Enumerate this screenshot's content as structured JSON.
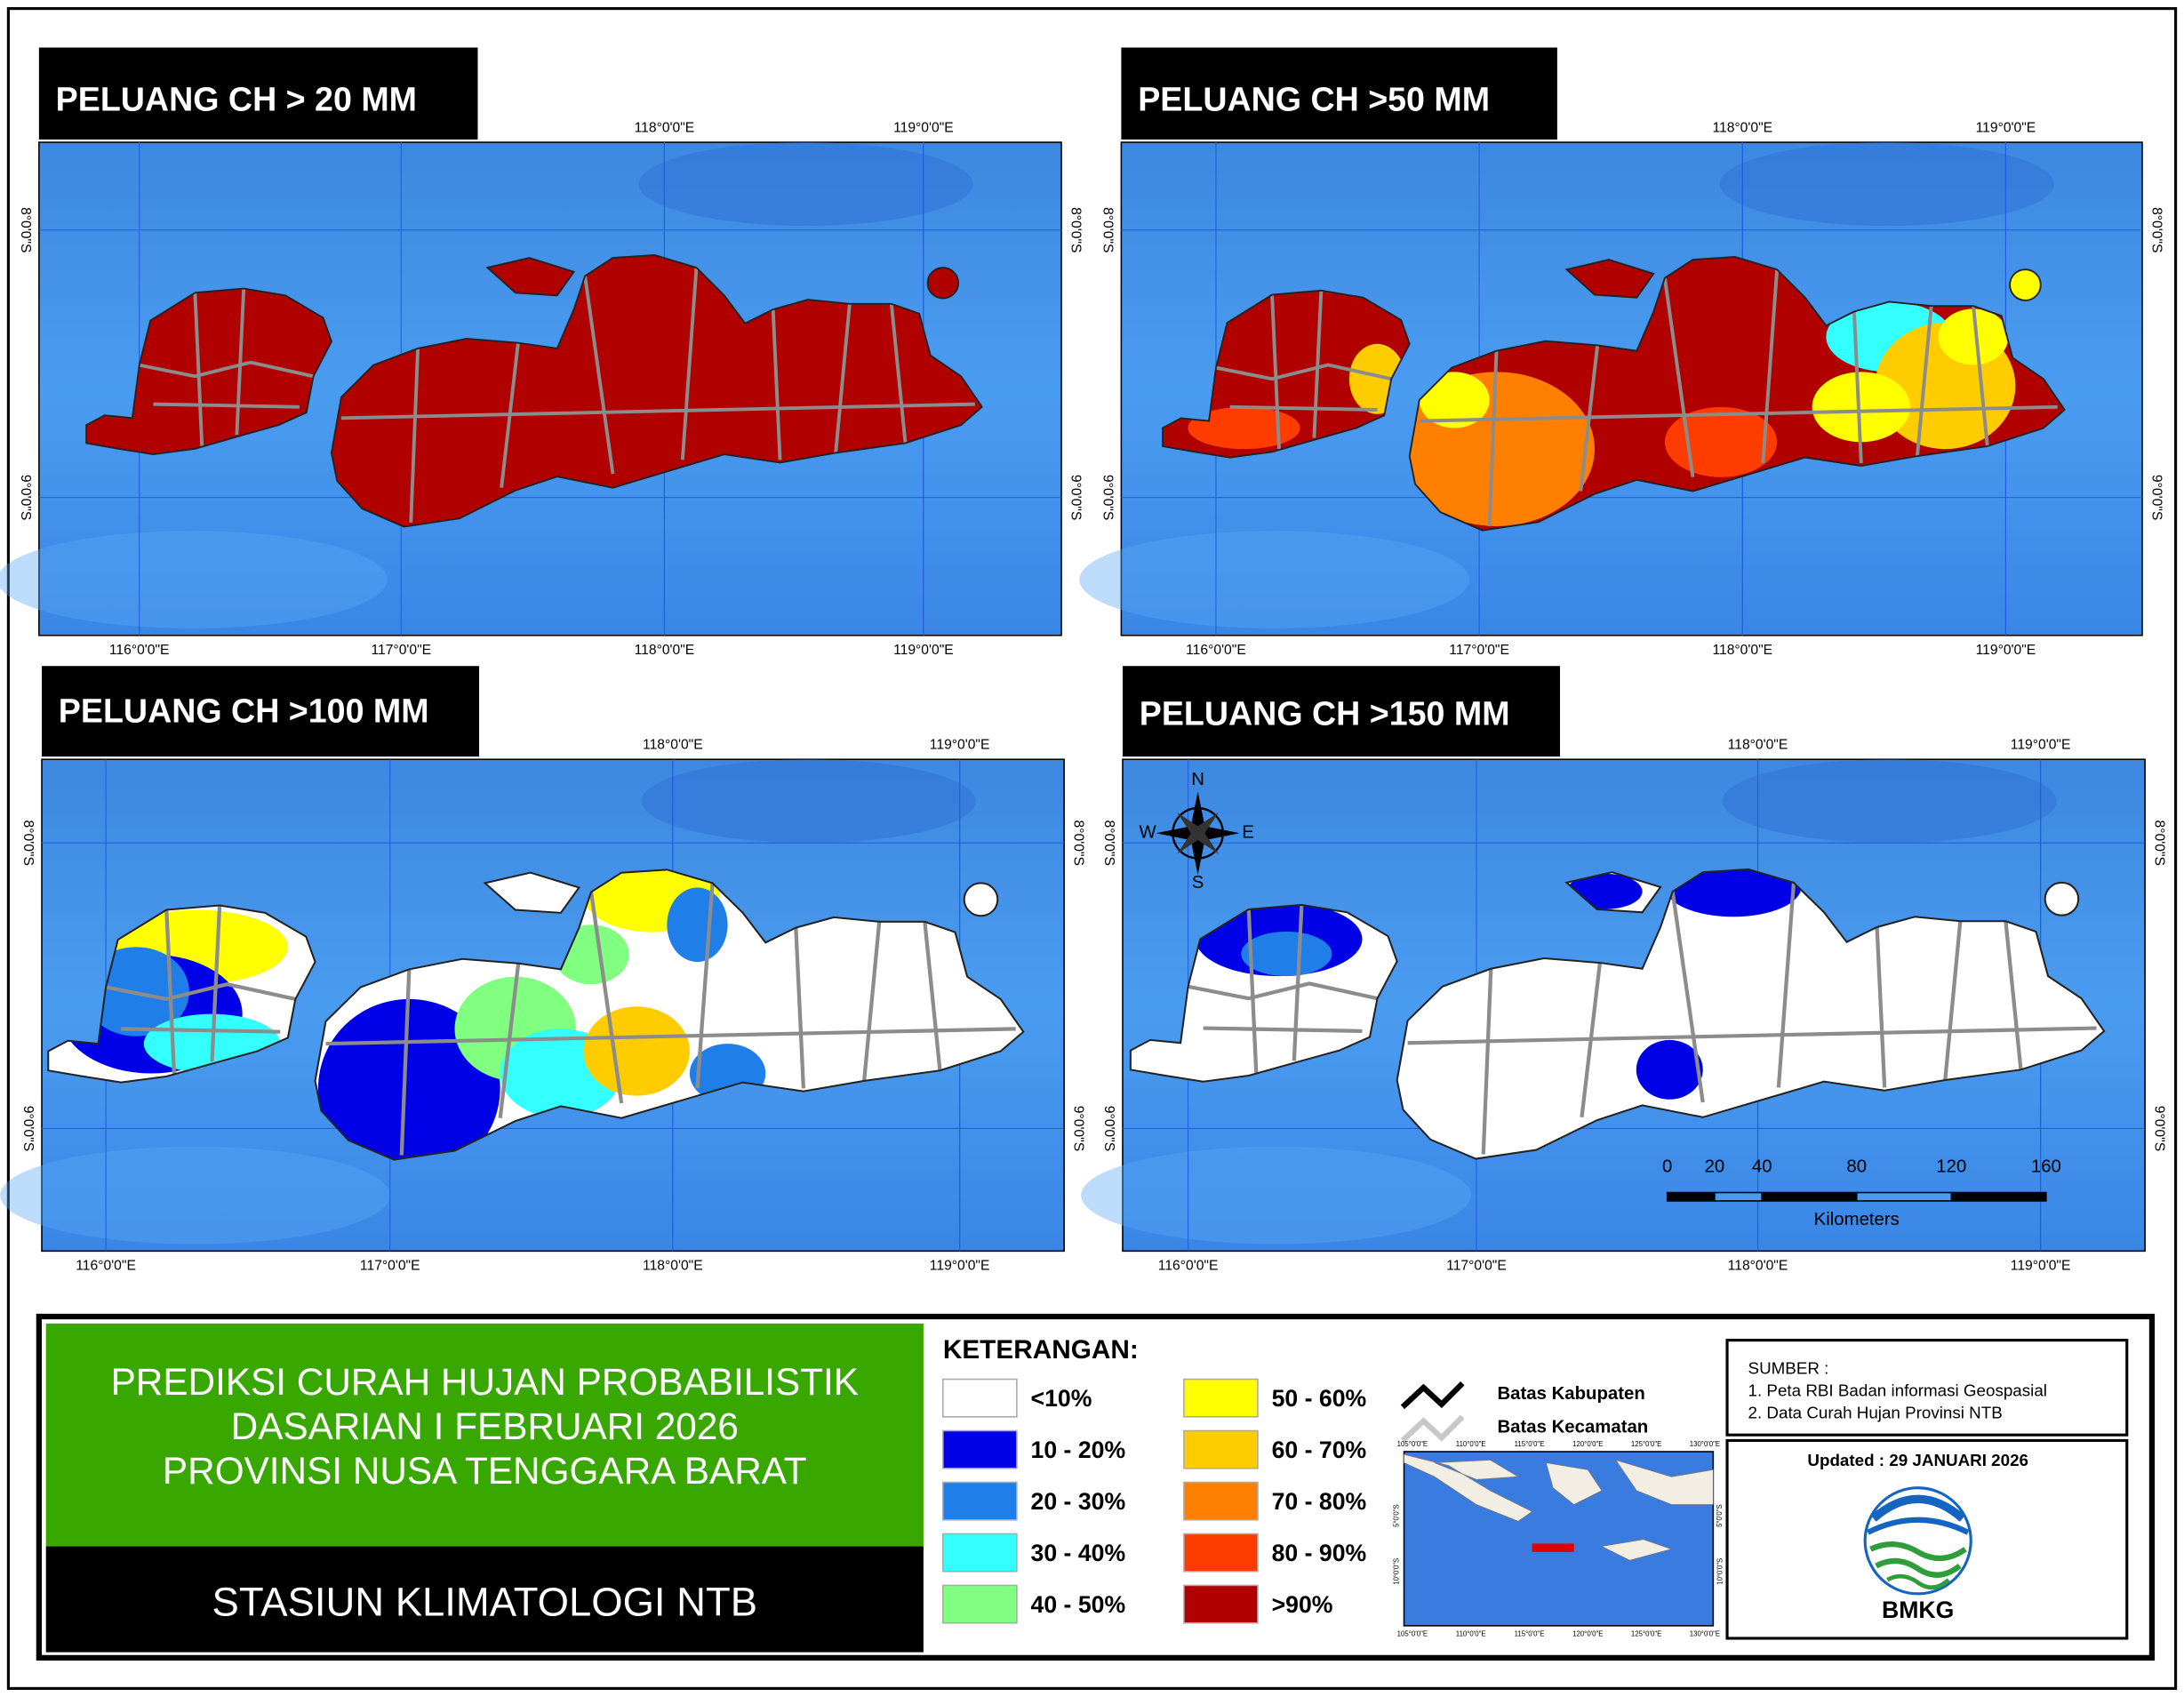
{
  "panels": [
    {
      "title": "PELUANG CH > 20 MM",
      "lon_top": [
        "118°0'0\"E",
        "119°0'0\"E"
      ],
      "lon_bottom": [
        "116°0'0\"E",
        "117°0'0\"E",
        "118°0'0\"E",
        "119°0'0\"E"
      ],
      "lat": [
        "8°0'0\"S",
        "9°0'0\"S"
      ]
    },
    {
      "title": "PELUANG CH >50 MM",
      "lon_top": [
        "118°0'0\"E",
        "119°0'0\"E"
      ],
      "lon_bottom": [
        "116°0'0\"E",
        "117°0'0\"E",
        "118°0'0\"E",
        "119°0'0\"E"
      ],
      "lat": [
        "8°0'0\"S",
        "9°0'0\"S"
      ]
    },
    {
      "title": "PELUANG CH >100 MM",
      "lon_top": [
        "118°0'0\"E",
        "119°0'0\"E"
      ],
      "lon_bottom": [
        "116°0'0\"E",
        "117°0'0\"E",
        "118°0'0\"E",
        "119°0'0\"E"
      ],
      "lat": [
        "8°0'0\"S",
        "9°0'0\"S"
      ]
    },
    {
      "title": "PELUANG CH >150 MM",
      "lon_top": [
        "118°0'0\"E",
        "119°0'0\"E"
      ],
      "lon_bottom": [
        "116°0'0\"E",
        "117°0'0\"E",
        "118°0'0\"E",
        "119°0'0\"E"
      ],
      "lat": [
        "8°0'0\"S",
        "9°0'0\"S"
      ]
    }
  ],
  "compass": [
    "N",
    "S",
    "E",
    "W"
  ],
  "scale_bar": {
    "labels": [
      0,
      20,
      40,
      80,
      120,
      160
    ],
    "unit": "Kilometers"
  },
  "info": {
    "title_lines": [
      "PREDIKSI CURAH HUJAN PROBABILISTIK",
      "DASARIAN  I FEBRUARI 2026",
      "PROVINSI NUSA TENGGARA BARAT"
    ],
    "station": "STASIUN KLIMATOLOGI NTB"
  },
  "legend": {
    "title": "KETERANGAN:",
    "items": [
      {
        "label": "<10%",
        "color": "#ffffff"
      },
      {
        "label": "10 - 20%",
        "color": "#0000e6"
      },
      {
        "label": "20 - 30%",
        "color": "#1f7ee8"
      },
      {
        "label": "30 - 40%",
        "color": "#33ffff"
      },
      {
        "label": "40 - 50%",
        "color": "#80ff80"
      },
      {
        "label": "50 - 60%",
        "color": "#ffff00"
      },
      {
        "label": "60 - 70%",
        "color": "#ffcc00"
      },
      {
        "label": "70 - 80%",
        "color": "#ff8000"
      },
      {
        "label": "80 - 90%",
        "color": "#ff3c00"
      },
      {
        "label": ">90%",
        "color": "#b00000"
      }
    ],
    "lines": [
      "Batas Kabupaten",
      "Batas Kecamatan"
    ]
  },
  "inset": {
    "lon": [
      "105°0'0\"E",
      "110°0'0\"E",
      "115°0'0\"E",
      "120°0'0\"E",
      "125°0'0\"E",
      "130°0'0\"E"
    ],
    "lat": [
      "5°0'0\"S",
      "10°0'0\"S"
    ]
  },
  "source": {
    "title": "SUMBER :",
    "lines": [
      "1. Peta RBI Badan informasi Geospasial",
      "2. Data Curah Hujan Provinsi NTB"
    ],
    "updated": "Updated : 29 JANUARI 2026",
    "logo": "BMKG"
  }
}
